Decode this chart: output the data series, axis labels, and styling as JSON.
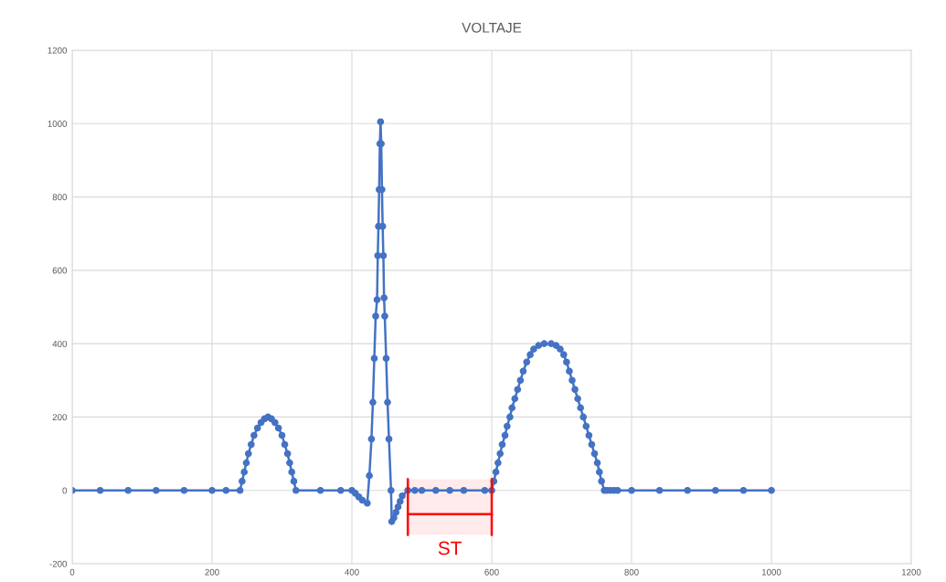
{
  "chart_data": {
    "type": "line",
    "title": "VOLTAJE",
    "x": [
      0,
      40,
      80,
      120,
      160,
      200,
      220,
      240,
      243,
      246,
      249,
      252,
      256,
      260,
      265,
      270,
      275,
      280,
      285,
      290,
      295,
      300,
      304,
      308,
      311,
      314,
      317,
      320,
      355,
      384,
      400,
      405,
      410,
      415,
      422,
      425,
      428,
      430,
      432,
      434,
      436,
      437,
      438,
      439,
      440,
      441,
      442,
      443,
      444,
      445,
      446,
      447,
      449,
      451,
      453,
      456,
      457,
      460,
      463,
      466,
      469,
      472,
      480,
      490,
      500,
      520,
      540,
      560,
      590,
      600,
      603,
      606,
      609,
      612,
      615,
      619,
      622,
      626,
      629,
      633,
      637,
      641,
      645,
      650,
      655,
      660,
      667,
      675,
      685,
      692,
      698,
      703,
      707,
      711,
      715,
      719,
      723,
      727,
      731,
      735,
      739,
      743,
      747,
      751,
      754,
      757,
      761,
      765,
      770,
      775,
      780,
      800,
      840,
      880,
      920,
      960,
      1000
    ],
    "series": [
      {
        "color": "#4472c4",
        "values": [
          0,
          0,
          0,
          0,
          0,
          0,
          0,
          0,
          25,
          50,
          75,
          100,
          125,
          150,
          170,
          185,
          195,
          200,
          195,
          185,
          170,
          150,
          125,
          100,
          75,
          50,
          25,
          0,
          0,
          0,
          0,
          -8,
          -18,
          -27,
          -35,
          40,
          140,
          240,
          360,
          475,
          520,
          640,
          720,
          820,
          945,
          1005,
          945,
          820,
          720,
          640,
          525,
          475,
          360,
          240,
          140,
          0,
          -85,
          -75,
          -60,
          -45,
          -30,
          -15,
          0,
          0,
          0,
          0,
          0,
          0,
          0,
          0,
          25,
          50,
          75,
          100,
          125,
          150,
          175,
          200,
          225,
          250,
          275,
          300,
          325,
          350,
          370,
          385,
          395,
          400,
          400,
          395,
          385,
          370,
          350,
          325,
          300,
          275,
          250,
          225,
          200,
          175,
          150,
          125,
          100,
          75,
          50,
          25,
          0,
          0,
          0,
          0,
          0,
          0,
          0,
          0,
          0,
          0,
          0
        ]
      }
    ],
    "xlim": [
      0,
      1200
    ],
    "xticks": [
      0,
      200,
      400,
      600,
      800,
      1000,
      1200
    ],
    "ylim": [
      -200,
      1200
    ],
    "yticks": [
      -200,
      0,
      200,
      400,
      600,
      800,
      1000,
      1200
    ],
    "grid": true,
    "marker": "circle",
    "line_style": "solid",
    "bands": [
      {
        "axis": "x",
        "from": 480,
        "to": 600,
        "label": "ST",
        "color": "#ff0000"
      }
    ]
  }
}
